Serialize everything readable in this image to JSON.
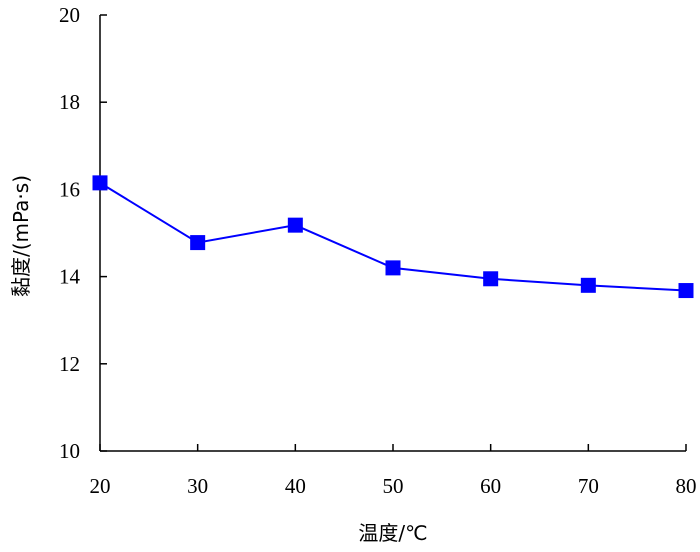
{
  "chart_data": {
    "type": "line",
    "xlabel": "温度/℃",
    "ylabel": "黏度/(mPa·s)",
    "xlim": [
      20,
      80
    ],
    "ylim": [
      10,
      20
    ],
    "xticks": [
      20,
      30,
      40,
      50,
      60,
      70,
      80
    ],
    "yticks": [
      10,
      12,
      14,
      16,
      18,
      20
    ],
    "grid": false,
    "series": [
      {
        "x": [
          20,
          30,
          40,
          50,
          60,
          70,
          80
        ],
        "y": [
          16.15,
          14.78,
          15.18,
          14.2,
          13.95,
          13.8,
          13.68
        ],
        "color": "#0000ff",
        "marker": "square"
      }
    ]
  }
}
